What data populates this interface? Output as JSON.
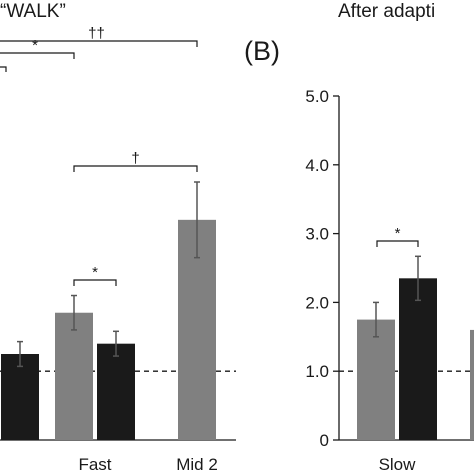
{
  "chart_data": [
    {
      "type": "bar",
      "title": "“WALK”",
      "categories": [
        "",
        "Fast",
        "Mid 2"
      ],
      "series": [
        {
          "values": [
            null,
            1.85,
            3.2
          ]
        },
        {
          "values": [
            1.25,
            1.4,
            null
          ]
        }
      ],
      "errors": [
        [
          null,
          0.25,
          0.55
        ],
        [
          0.18,
          0.18,
          null
        ]
      ],
      "reference_line": 1.0,
      "ylim": [
        0,
        5.0
      ],
      "annotations": [
        "*",
        "††",
        "*",
        "†"
      ]
    },
    {
      "type": "bar",
      "panel_label": "(B)",
      "title": "After adapti",
      "categories": [
        "Slow"
      ],
      "series": [
        {
          "values": [
            1.75
          ]
        },
        {
          "values": [
            2.35
          ]
        }
      ],
      "errors": [
        [
          0.25
        ],
        [
          0.32
        ]
      ],
      "reference_line": 1.0,
      "ylim": [
        0,
        5.0
      ],
      "yticks": [
        "0",
        "1.0",
        "2.0",
        "3.0",
        "4.0",
        "5.0"
      ],
      "annotations": [
        "*"
      ]
    }
  ],
  "colors": {
    "gray": "#808080",
    "black": "#1a1a1a"
  }
}
